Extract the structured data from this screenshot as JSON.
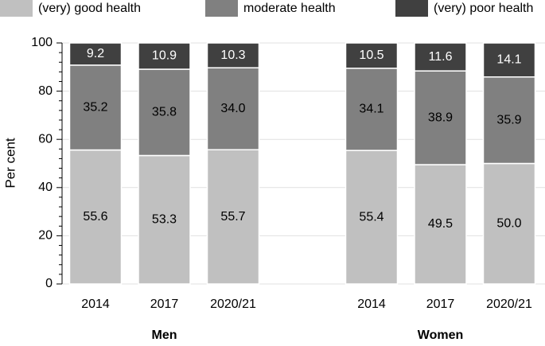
{
  "chart_data": {
    "type": "stacked-bar",
    "y_label": "Per cent",
    "categories": [
      "2014",
      "2017",
      "2020/21",
      "2014",
      "2017",
      "2020/21"
    ],
    "group_labels": [
      "Men",
      "Women"
    ],
    "group_size": 3,
    "series": [
      {
        "name": "(very) good health",
        "color": "#c0c0c0",
        "label_color": "#000000",
        "values": [
          55.6,
          53.3,
          55.7,
          55.4,
          49.5,
          50.0
        ],
        "value_labels": [
          "55.6",
          "53.3",
          "55.7",
          "55.4",
          "49.5",
          "50.0"
        ]
      },
      {
        "name": "moderate health",
        "color": "#808080",
        "label_color": "#000000",
        "values": [
          35.2,
          35.8,
          34.0,
          34.1,
          38.9,
          35.9
        ],
        "value_labels": [
          "35.2",
          "35.8",
          "34.0",
          "34.1",
          "38.9",
          "35.9"
        ]
      },
      {
        "name": "(very) poor health",
        "color": "#404040",
        "label_color": "#ffffff",
        "values": [
          9.2,
          10.9,
          10.3,
          10.5,
          11.6,
          14.1
        ],
        "value_labels": [
          "9.2",
          "10.9",
          "10.3",
          "10.5",
          "11.6",
          "14.1"
        ]
      }
    ],
    "ylim": [
      0,
      100
    ],
    "yticks": [
      0,
      20,
      40,
      60,
      80,
      100
    ],
    "yminorticks": [
      4,
      8,
      12,
      16,
      24,
      28,
      32,
      36,
      44,
      48,
      52,
      56,
      64,
      68,
      72,
      76,
      84,
      88,
      92,
      96
    ],
    "grid": true,
    "legend": "top"
  }
}
